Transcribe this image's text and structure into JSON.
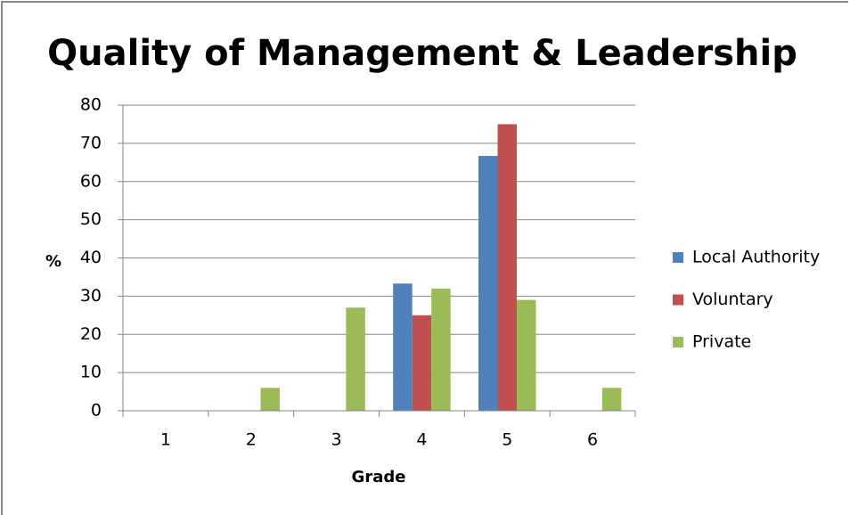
{
  "chart_data": {
    "type": "bar",
    "title": "Quality of Management & Leadership",
    "x_label": "Grade",
    "y_label": "%",
    "categories": [
      "1",
      "2",
      "3",
      "4",
      "5",
      "6"
    ],
    "series": [
      {
        "name": "Local Authority",
        "color": "#4f81bd",
        "values": [
          0,
          0,
          0,
          33.3,
          66.7,
          0
        ]
      },
      {
        "name": "Voluntary",
        "color": "#c0504d",
        "values": [
          0,
          0,
          0,
          25,
          75,
          0
        ]
      },
      {
        "name": "Private",
        "color": "#9bbb59",
        "values": [
          0,
          6,
          27,
          32,
          29,
          6
        ]
      }
    ],
    "ylim": [
      0,
      80
    ],
    "yticks": [
      0,
      10,
      20,
      30,
      40,
      50,
      60,
      70,
      80
    ],
    "grid": true,
    "legend": "right"
  }
}
